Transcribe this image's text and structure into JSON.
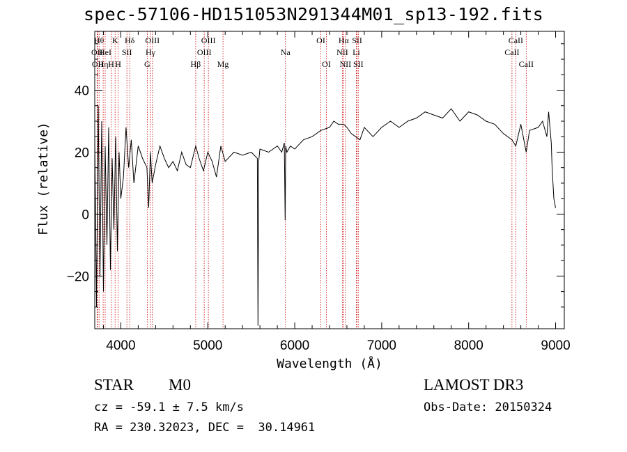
{
  "title": "spec-57106-HD151053N291344M01_sp13-192.fits",
  "info": {
    "class": "STAR",
    "subclass": "M0",
    "cz": "cz = -59.1 ± 7.5 km/s",
    "radec": "RA = 230.32023, DEC =  30.14961",
    "survey": "LAMOST DR3",
    "obsdate": "Obs-Date: 20150324"
  },
  "colors": {
    "line_marker": "#cc0000",
    "spectrum": "#000000"
  },
  "chart_data": {
    "type": "line",
    "xlabel": "Wavelength (Å)",
    "ylabel": "Flux (relative)",
    "xlim": [
      3700,
      9100
    ],
    "ylim": [
      -37,
      59
    ],
    "xticks": [
      4000,
      5000,
      6000,
      7000,
      8000,
      9000
    ],
    "yticks": [
      -20,
      0,
      20,
      40
    ],
    "spectrum": {
      "x": [
        3700,
        3720,
        3740,
        3760,
        3780,
        3800,
        3820,
        3840,
        3860,
        3880,
        3900,
        3920,
        3940,
        3960,
        3980,
        4000,
        4030,
        4060,
        4090,
        4120,
        4150,
        4200,
        4250,
        4300,
        4320,
        4340,
        4360,
        4400,
        4450,
        4500,
        4550,
        4600,
        4650,
        4700,
        4750,
        4800,
        4861,
        4900,
        4950,
        5000,
        5050,
        5100,
        5150,
        5200,
        5300,
        5400,
        5500,
        5570,
        5577,
        5585,
        5600,
        5700,
        5800,
        5850,
        5880,
        5890,
        5896,
        5910,
        5950,
        6000,
        6100,
        6200,
        6300,
        6400,
        6450,
        6500,
        6563,
        6600,
        6650,
        6700,
        6750,
        6800,
        6900,
        7000,
        7100,
        7200,
        7300,
        7400,
        7500,
        7600,
        7700,
        7800,
        7900,
        8000,
        8100,
        8200,
        8300,
        8400,
        8498,
        8542,
        8600,
        8662,
        8700,
        8800,
        8850,
        8900,
        8920,
        8950,
        8960,
        8980,
        9000
      ],
      "y": [
        25,
        -30,
        35,
        -20,
        30,
        -25,
        22,
        -10,
        28,
        -18,
        18,
        -5,
        25,
        -12,
        20,
        5,
        12,
        28,
        15,
        24,
        10,
        22,
        18,
        15,
        2,
        20,
        10,
        16,
        22,
        18,
        15,
        17,
        14,
        20,
        16,
        15,
        22,
        18,
        14,
        20,
        17,
        12,
        22,
        17,
        20,
        19,
        20,
        18,
        -36,
        17,
        21,
        20,
        22,
        20,
        23,
        -2,
        22,
        20,
        22,
        21,
        24,
        25,
        27,
        28,
        30,
        29,
        29,
        28,
        26,
        25,
        24,
        28,
        25,
        28,
        30,
        28,
        30,
        31,
        33,
        32,
        31,
        34,
        30,
        33,
        32,
        30,
        29,
        26,
        24,
        22,
        29,
        20,
        27,
        28,
        30,
        25,
        33,
        23,
        15,
        5,
        2
      ]
    },
    "lines": [
      {
        "wave": 3727,
        "label": "OII",
        "row": 2
      },
      {
        "wave": 3734,
        "label": "OII",
        "row": 3
      },
      {
        "wave": 3750,
        "label": "Hθ",
        "row": 1
      },
      {
        "wave": 3797,
        "label": "Hη",
        "row": 3
      },
      {
        "wave": 3820,
        "label": "HeI",
        "row": 2
      },
      {
        "wave": 3889,
        "label": "H",
        "row": 3
      },
      {
        "wave": 3934,
        "label": "K",
        "row": 1
      },
      {
        "wave": 3969,
        "label": "H",
        "row": 3
      },
      {
        "wave": 4070,
        "label": "SII",
        "row": 2
      },
      {
        "wave": 4102,
        "label": "Hδ",
        "row": 1
      },
      {
        "wave": 4304,
        "label": "G",
        "row": 3
      },
      {
        "wave": 4341,
        "label": "Hγ",
        "row": 2
      },
      {
        "wave": 4363,
        "label": "OIII",
        "row": 1
      },
      {
        "wave": 4861,
        "label": "Hβ",
        "row": 3
      },
      {
        "wave": 4959,
        "label": "OIII",
        "row": 2
      },
      {
        "wave": 5007,
        "label": "OIII",
        "row": 1
      },
      {
        "wave": 5175,
        "label": "Mg",
        "row": 3
      },
      {
        "wave": 5893,
        "label": "Na",
        "row": 2
      },
      {
        "wave": 6300,
        "label": "OI",
        "row": 1
      },
      {
        "wave": 6364,
        "label": "OI",
        "row": 3
      },
      {
        "wave": 6548,
        "label": "NII",
        "row": 2
      },
      {
        "wave": 6563,
        "label": "Hα",
        "row": 1
      },
      {
        "wave": 6583,
        "label": "NII",
        "row": 3
      },
      {
        "wave": 6708,
        "label": "Li",
        "row": 2
      },
      {
        "wave": 6717,
        "label": "SII",
        "row": 1
      },
      {
        "wave": 6731,
        "label": "SII",
        "row": 3
      },
      {
        "wave": 8498,
        "label": "CaII",
        "row": 2
      },
      {
        "wave": 8542,
        "label": "CaII",
        "row": 1
      },
      {
        "wave": 8662,
        "label": "CaII",
        "row": 3
      }
    ]
  }
}
